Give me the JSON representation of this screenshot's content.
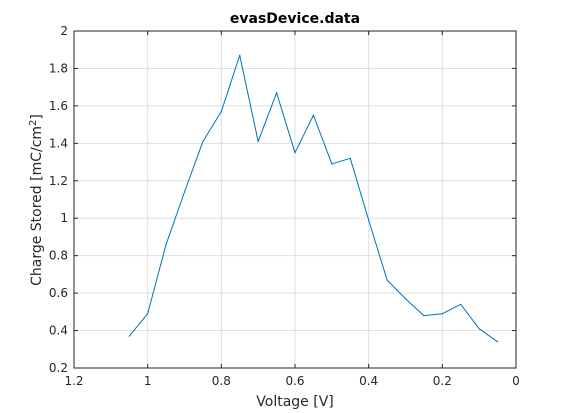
{
  "chart_data": {
    "type": "line",
    "title": "evasDevice.data",
    "xlabel": "Voltage [V]",
    "ylabel_main": "Charge Stored [mC/cm",
    "ylabel_sup": "2",
    "ylabel_end": "]",
    "xlim": [
      1.2,
      0
    ],
    "ylim": [
      0.2,
      2
    ],
    "x_reversed": true,
    "grid": true,
    "x_ticks": [
      1.2,
      1,
      0.8,
      0.6,
      0.4,
      0.2,
      0
    ],
    "x_tick_labels": [
      "1.2",
      "1",
      "0.8",
      "0.6",
      "0.4",
      "0.2",
      "0"
    ],
    "y_ticks": [
      0.2,
      0.4,
      0.6,
      0.8,
      1,
      1.2,
      1.4,
      1.6,
      1.8,
      2
    ],
    "y_tick_labels": [
      "0.2",
      "0.4",
      "0.6",
      "0.8",
      "1",
      "1.2",
      "1.4",
      "1.6",
      "1.8",
      "2"
    ],
    "series": [
      {
        "color": "#0072bd",
        "x": [
          1.05,
          1.0,
          0.95,
          0.9,
          0.85,
          0.8,
          0.75,
          0.7,
          0.65,
          0.6,
          0.55,
          0.5,
          0.45,
          0.4,
          0.35,
          0.3,
          0.25,
          0.2,
          0.15,
          0.1,
          0.05
        ],
        "y": [
          0.37,
          0.49,
          0.86,
          1.14,
          1.41,
          1.57,
          1.87,
          1.41,
          1.67,
          1.35,
          1.55,
          1.29,
          1.32,
          0.99,
          0.67,
          0.57,
          0.48,
          0.49,
          0.54,
          0.41,
          0.34
        ]
      }
    ]
  }
}
